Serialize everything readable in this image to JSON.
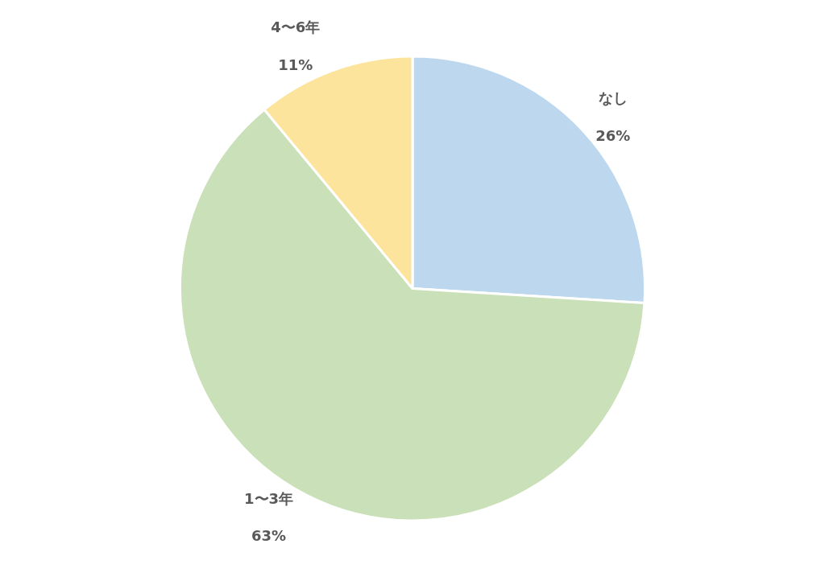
{
  "chart_data": {
    "type": "pie",
    "categories": [
      "なし",
      "1〜3年",
      "4〜6年"
    ],
    "values": [
      26,
      63,
      11
    ],
    "value_labels": [
      "26%",
      "63%",
      "11%"
    ],
    "colors": [
      "#bdd7ee",
      "#c9e0b8",
      "#fde49c"
    ],
    "legend": false
  }
}
